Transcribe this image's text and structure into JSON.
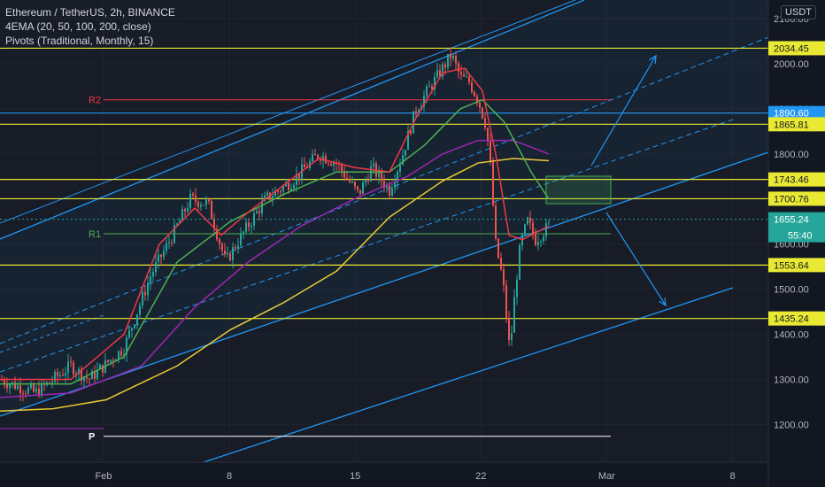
{
  "legend": {
    "symbol": "Ethereum / TetherUS, 2h, BINANCE",
    "ema": "4EMA (20, 50, 100, 200, close)",
    "pivots": "Pivots (Traditional, Monthly, 15)"
  },
  "currency": "USDT",
  "chart_data": {
    "type": "candlestick",
    "x_ticks": [
      "Feb",
      "8",
      "15",
      "22",
      "Mar",
      "8"
    ],
    "y_ticks": [
      "1200.00",
      "1300.00",
      "1400.00",
      "1500.00",
      "1600.00",
      "1700.00",
      "1800.00",
      "1900.00",
      "2000.00",
      "2100.00"
    ],
    "ylim": [
      1170,
      2210
    ],
    "horizontal_levels": [
      {
        "value": 2034.45,
        "label": "2034.45",
        "color": "#e9e934"
      },
      {
        "value": 1890.6,
        "label": "1890.60",
        "color": "#2196f3"
      },
      {
        "value": 1865.81,
        "label": "1865.81",
        "color": "#e9e934"
      },
      {
        "value": 1743.46,
        "label": "1743.46",
        "color": "#e9e934"
      },
      {
        "value": 1700.76,
        "label": "1700.76",
        "color": "#e9e934"
      },
      {
        "value": 1553.64,
        "label": "1553.64",
        "color": "#e9e934"
      },
      {
        "value": 1435.24,
        "label": "1435.24",
        "color": "#e9e934"
      }
    ],
    "pivots": [
      {
        "name": "R2",
        "value": 1920,
        "color": "#f23645"
      },
      {
        "name": "R1",
        "value": 1623,
        "color": "#4caf50"
      },
      {
        "name": "P",
        "value": 1174,
        "color": "#ffffff"
      }
    ],
    "last_price": {
      "value": "1655.24",
      "countdown": "55:40",
      "color": "#26a69a"
    },
    "ema_colors": {
      "ema20": "#f23645",
      "ema50": "#4caf50",
      "ema100": "#9c27b0",
      "ema200": "#e9c934"
    },
    "trend_color": "#2196f3"
  }
}
